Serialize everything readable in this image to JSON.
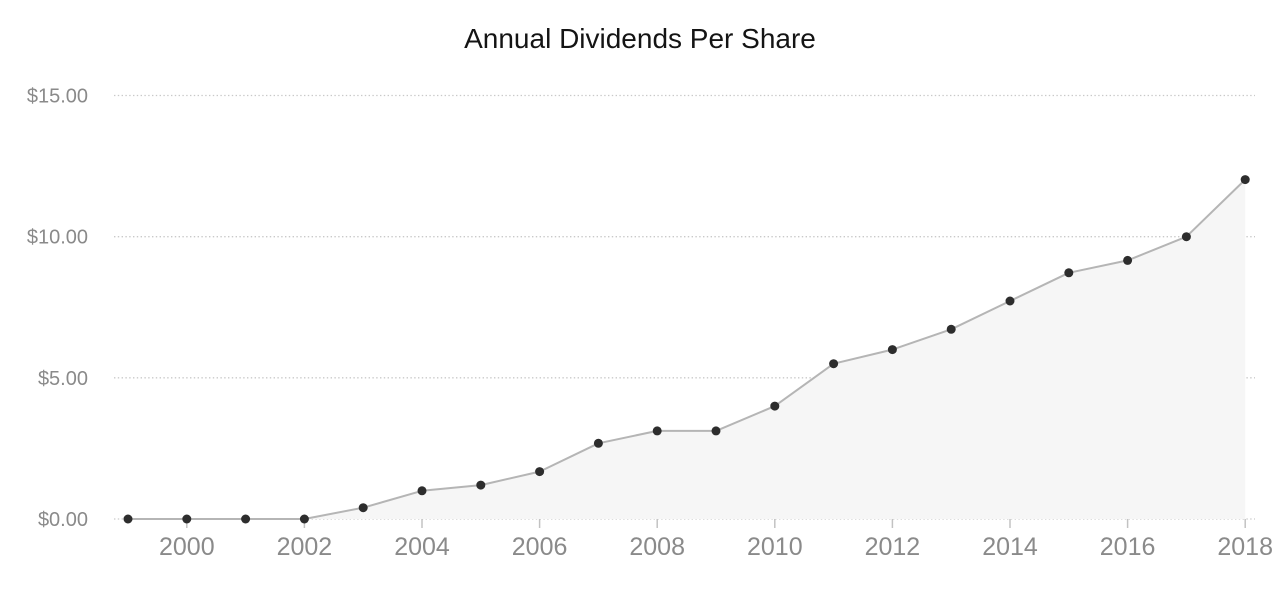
{
  "chart_data": {
    "type": "area",
    "title": "Annual Dividends Per Share",
    "xlabel": "",
    "ylabel": "",
    "x": [
      1999,
      2000,
      2001,
      2002,
      2003,
      2004,
      2005,
      2006,
      2007,
      2008,
      2009,
      2010,
      2011,
      2012,
      2013,
      2014,
      2015,
      2016,
      2017,
      2018
    ],
    "values": [
      0.0,
      0.0,
      0.0,
      0.0,
      0.4,
      1.0,
      1.2,
      1.68,
      2.68,
      3.12,
      3.12,
      4.0,
      5.5,
      6.0,
      6.72,
      7.72,
      8.72,
      9.16,
      10.0,
      12.02
    ],
    "ylim": [
      0,
      15
    ],
    "y_ticks": [
      {
        "value": 0,
        "label": "$0.00"
      },
      {
        "value": 5,
        "label": "$5.00"
      },
      {
        "value": 10,
        "label": "$10.00"
      },
      {
        "value": 15,
        "label": "$15.00"
      }
    ],
    "x_tick_years": [
      2000,
      2002,
      2004,
      2006,
      2008,
      2010,
      2012,
      2014,
      2016,
      2018
    ],
    "x_tick_labels": [
      "2000",
      "2002",
      "2004",
      "2006",
      "2008",
      "2010",
      "2012",
      "2014",
      "2016",
      "2018"
    ],
    "grid": "horizontal-dotted",
    "legend": "none",
    "colors": {
      "background": "#ffffff",
      "title": "#141414",
      "axis_label": "#8a8a8a",
      "gridline": "#c9c9c9",
      "tick": "#c2c2c2",
      "line": "#b5b5b5",
      "area_fill": "#f6f6f6",
      "point": "#2d2d2d"
    }
  }
}
